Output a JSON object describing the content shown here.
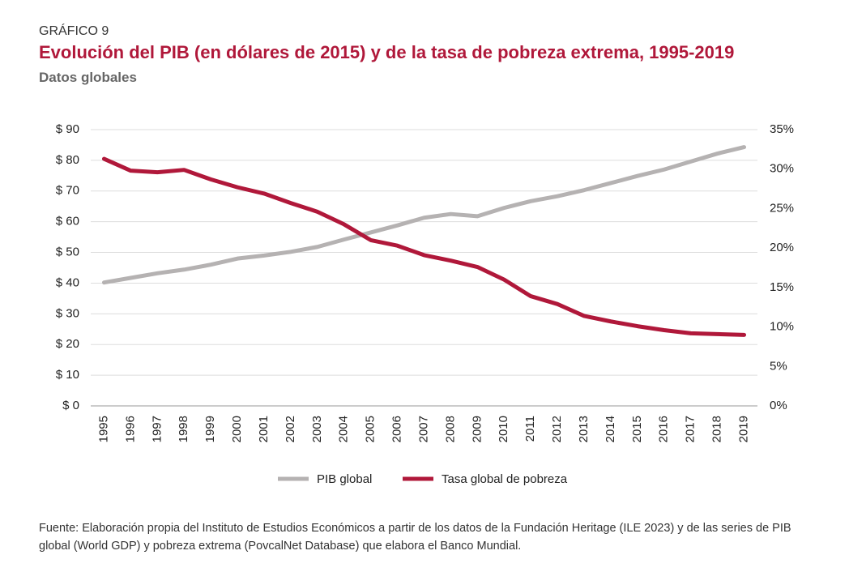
{
  "chart_data": {
    "type": "line",
    "kicker": "GRÁFICO 9",
    "title": "Evolución del PIB (en dólares de 2015) y de la tasa de pobreza extrema, 1995-2019",
    "subtitle": "Datos globales",
    "source": "Fuente: Elaboración propia del Instituto de Estudios Económicos a partir de los datos de la Fundación Heritage (ILE 2023) y de las series de PIB global (World GDP) y pobreza extrema (PovcalNet Database) que elabora el Banco Mundial.",
    "categories": [
      "1995",
      "1996",
      "1997",
      "1998",
      "1999",
      "2000",
      "2001",
      "2002",
      "2003",
      "2004",
      "2005",
      "2006",
      "2007",
      "2008",
      "2009",
      "2010",
      "2011",
      "2012",
      "2013",
      "2014",
      "2015",
      "2016",
      "2017",
      "2018",
      "2019"
    ],
    "series": [
      {
        "name": "PIB global",
        "color": "#b5b2b2",
        "values": [
          40.2,
          41.7,
          43.2,
          44.4,
          46.0,
          48.0,
          49.0,
          50.2,
          51.8,
          54.2,
          56.5,
          58.8,
          61.3,
          62.5,
          61.8,
          64.5,
          66.7,
          68.3,
          70.3,
          72.6,
          74.9,
          77.0,
          79.6,
          82.2,
          84.3
        ]
      },
      {
        "name": "Tasa global de pobreza",
        "color": "#b0183a",
        "axis": "y2",
        "values": [
          31.3,
          29.8,
          29.6,
          29.9,
          28.7,
          27.7,
          26.9,
          25.7,
          24.6,
          23.0,
          21.0,
          20.3,
          19.1,
          18.4,
          17.6,
          16.0,
          13.9,
          12.9,
          11.4,
          10.7,
          10.1,
          9.6,
          9.2,
          9.1,
          9.0
        ]
      }
    ],
    "ylim": [
      0,
      90
    ],
    "yticks": [
      {
        "value": 0,
        "label": "$ 0"
      },
      {
        "value": 10,
        "label": "$ 10"
      },
      {
        "value": 20,
        "label": "$ 20"
      },
      {
        "value": 30,
        "label": "$ 30"
      },
      {
        "value": 40,
        "label": "$ 40"
      },
      {
        "value": 50,
        "label": "$ 50"
      },
      {
        "value": 60,
        "label": "$ 60"
      },
      {
        "value": 70,
        "label": "$ 70"
      },
      {
        "value": 80,
        "label": "$ 80"
      },
      {
        "value": 90,
        "label": "$ 90"
      }
    ],
    "y2lim": [
      0,
      35
    ],
    "y2ticks": [
      {
        "value": 0,
        "label": "0%"
      },
      {
        "value": 5,
        "label": "5%"
      },
      {
        "value": 10,
        "label": "10%"
      },
      {
        "value": 15,
        "label": "15%"
      },
      {
        "value": 20,
        "label": "20%"
      },
      {
        "value": 25,
        "label": "25%"
      },
      {
        "value": 30,
        "label": "30%"
      },
      {
        "value": 35,
        "label": "35%"
      }
    ],
    "grid": true
  }
}
